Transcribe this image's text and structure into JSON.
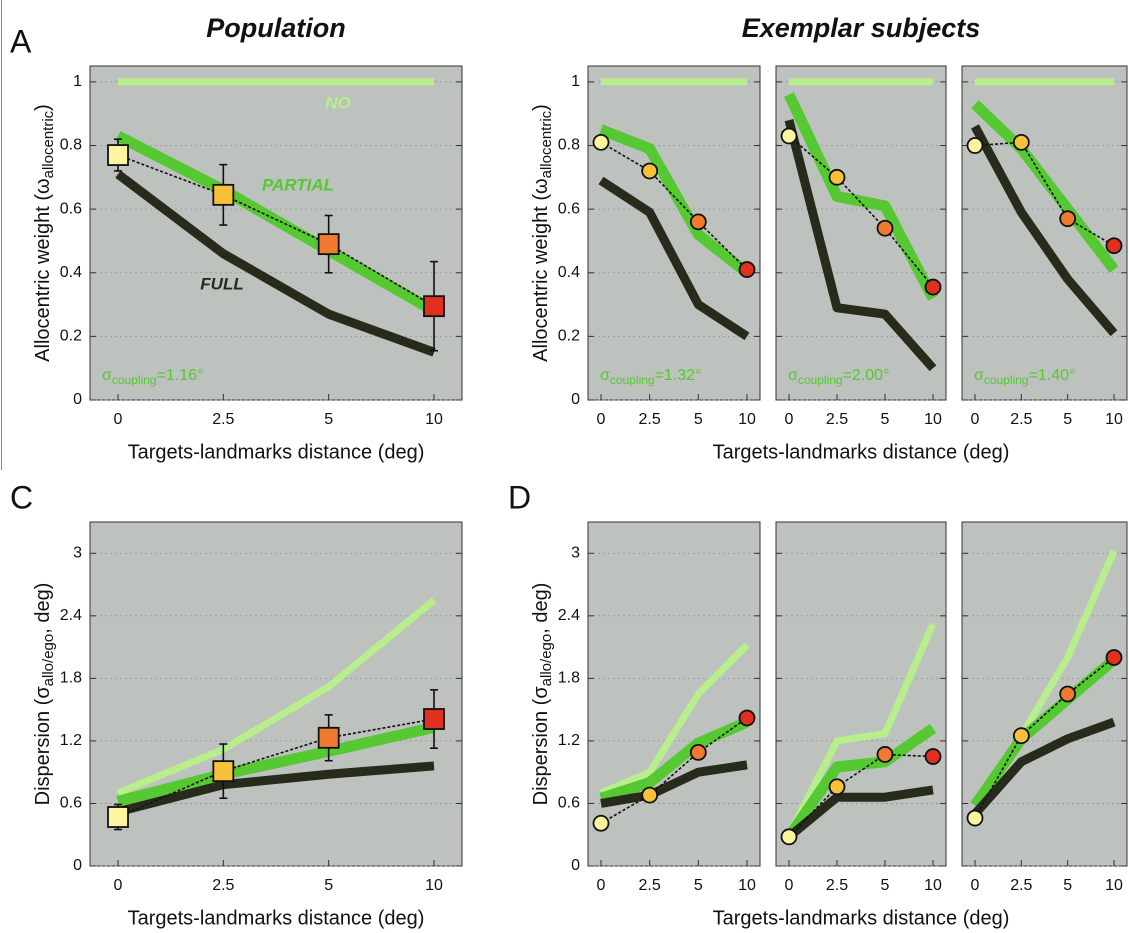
{
  "chart_data": [
    {
      "type": "line",
      "panel_label": "A",
      "heading": "Population",
      "ylabel": [
        "Allocentric weight (ω",
        "allocentric",
        ")"
      ],
      "xlabel": "Targets-landmarks distance (deg)",
      "categories": [
        "0",
        "2.5",
        "5",
        "10"
      ],
      "ylim": [
        0,
        1.05
      ],
      "yticks": [
        0,
        0.2,
        0.4,
        0.6,
        0.8,
        1
      ],
      "ytick_labels": true,
      "grid": true,
      "background": "#bdc2bf",
      "series": [
        {
          "color": "#b8ef8c",
          "values": [
            1,
            1,
            1,
            1
          ]
        },
        {
          "color": "#55c832",
          "values": [
            0.83,
            0.66,
            0.47,
            0.28
          ]
        },
        {
          "color": "#272b1c",
          "values": [
            0.71,
            0.46,
            0.27,
            0.15
          ]
        },
        {
          "color": "#111111",
          "marker": "square",
          "values": [
            0.77,
            0.645,
            0.49,
            0.295
          ],
          "errors": [
            0.05,
            0.095,
            0.09,
            0.14
          ],
          "point_colors": [
            "#fdf4a0",
            "#f9c03a",
            "#f07a30",
            "#e0301e"
          ]
        }
      ],
      "annotations": [
        {
          "text": "NO",
          "color": "#b8ef8c"
        },
        {
          "text": "PARTIAL",
          "color": "#55c832"
        },
        {
          "text": "FULL",
          "color": "#272b1c"
        }
      ],
      "coupling_label": [
        "σ",
        "coupling",
        "=1.16°"
      ]
    },
    {
      "type": "line",
      "ylabel": [
        "Allocentric weight (ω",
        "allocentric",
        ")"
      ],
      "categories": [
        "0",
        "2.5",
        "5",
        "10"
      ],
      "ylim": [
        0,
        1.05
      ],
      "yticks": [
        0,
        0.2,
        0.4,
        0.6,
        0.8,
        1
      ],
      "ytick_labels": true,
      "grid": true,
      "background": "#bdc2bf",
      "series": [
        {
          "color": "#b8ef8c",
          "values": [
            1,
            1,
            1,
            1
          ]
        },
        {
          "color": "#55c832",
          "values": [
            0.85,
            0.79,
            0.52,
            0.4
          ]
        },
        {
          "color": "#272b1c",
          "values": [
            0.69,
            0.59,
            0.3,
            0.2
          ]
        },
        {
          "color": "#111111",
          "marker": "circle",
          "values": [
            0.81,
            0.72,
            0.56,
            0.41
          ],
          "point_colors": [
            "#fdf4a0",
            "#f9c03a",
            "#f07a30",
            "#e0301e"
          ]
        }
      ],
      "coupling_label": [
        "σ",
        "coupling",
        "=1.32°"
      ]
    },
    {
      "type": "line",
      "heading": "Exemplar subjects",
      "xlabel": "Targets-landmarks distance (deg)",
      "categories": [
        "0",
        "2.5",
        "5",
        "10"
      ],
      "ylim": [
        0,
        1.05
      ],
      "yticks": [
        0,
        0.2,
        0.4,
        0.6,
        0.8,
        1
      ],
      "ytick_labels": false,
      "grid": true,
      "background": "#bdc2bf",
      "series": [
        {
          "color": "#b8ef8c",
          "values": [
            1,
            1,
            1,
            1
          ]
        },
        {
          "color": "#55c832",
          "values": [
            0.96,
            0.64,
            0.61,
            0.32
          ]
        },
        {
          "color": "#272b1c",
          "values": [
            0.88,
            0.29,
            0.27,
            0.1
          ]
        },
        {
          "color": "#111111",
          "marker": "circle",
          "values": [
            0.83,
            0.7,
            0.54,
            0.355
          ],
          "point_colors": [
            "#fdf4a0",
            "#f9c03a",
            "#f07a30",
            "#e0301e"
          ]
        }
      ],
      "coupling_label": [
        "σ",
        "coupling",
        "=2.00°"
      ]
    },
    {
      "type": "line",
      "categories": [
        "0",
        "2.5",
        "5",
        "10"
      ],
      "ylim": [
        0,
        1.05
      ],
      "yticks": [
        0,
        0.2,
        0.4,
        0.6,
        0.8,
        1
      ],
      "ytick_labels": false,
      "grid": true,
      "background": "#bdc2bf",
      "series": [
        {
          "color": "#b8ef8c",
          "values": [
            1,
            1,
            1,
            1
          ]
        },
        {
          "color": "#55c832",
          "values": [
            0.93,
            0.79,
            0.6,
            0.41
          ]
        },
        {
          "color": "#272b1c",
          "values": [
            0.86,
            0.59,
            0.38,
            0.21
          ]
        },
        {
          "color": "#111111",
          "marker": "circle",
          "values": [
            0.8,
            0.81,
            0.57,
            0.485
          ],
          "point_colors": [
            "#fdf4a0",
            "#f9c03a",
            "#f07a30",
            "#e0301e"
          ]
        }
      ],
      "coupling_label": [
        "σ",
        "coupling",
        "=1.40°"
      ]
    },
    {
      "type": "line",
      "panel_label": "C",
      "ylabel": [
        "Dispersion (σ",
        "allo/ego",
        ", deg)"
      ],
      "xlabel": "Targets-landmarks distance (deg)",
      "categories": [
        "0",
        "2.5",
        "5",
        "10"
      ],
      "ylim": [
        0,
        3.3
      ],
      "yticks": [
        0,
        0.6,
        1.2,
        1.8,
        2.4,
        3
      ],
      "ytick_labels": true,
      "grid": true,
      "background": "#bdc2bf",
      "series": [
        {
          "color": "#b8ef8c",
          "values": [
            0.7,
            1.12,
            1.72,
            2.55
          ]
        },
        {
          "color": "#55c832",
          "values": [
            0.62,
            0.88,
            1.1,
            1.33
          ]
        },
        {
          "color": "#272b1c",
          "values": [
            0.52,
            0.78,
            0.88,
            0.96
          ]
        },
        {
          "color": "#111111",
          "marker": "square",
          "values": [
            0.47,
            0.91,
            1.23,
            1.41
          ],
          "errors": [
            0.12,
            0.26,
            0.22,
            0.28
          ],
          "point_colors": [
            "#fdf4a0",
            "#f9c03a",
            "#f07a30",
            "#e0301e"
          ]
        }
      ]
    },
    {
      "type": "line",
      "panel_label": "D",
      "ylabel": [
        "Dispersion (σ",
        "allo/ego",
        ", deg)"
      ],
      "categories": [
        "0",
        "2.5",
        "5",
        "10"
      ],
      "ylim": [
        0,
        3.3
      ],
      "yticks": [
        0,
        0.6,
        1.2,
        1.8,
        2.4,
        3
      ],
      "ytick_labels": true,
      "grid": true,
      "background": "#bdc2bf",
      "series": [
        {
          "color": "#b8ef8c",
          "values": [
            0.7,
            0.9,
            1.65,
            2.12
          ]
        },
        {
          "color": "#55c832",
          "values": [
            0.65,
            0.8,
            1.18,
            1.38
          ]
        },
        {
          "color": "#272b1c",
          "values": [
            0.6,
            0.68,
            0.9,
            0.97
          ]
        },
        {
          "color": "#111111",
          "marker": "circle",
          "values": [
            0.41,
            0.68,
            1.09,
            1.42
          ],
          "point_colors": [
            "#fdf4a0",
            "#f9c03a",
            "#f07a30",
            "#e0301e"
          ]
        }
      ]
    },
    {
      "type": "line",
      "xlabel": "Targets-landmarks distance (deg)",
      "categories": [
        "0",
        "2.5",
        "5",
        "10"
      ],
      "ylim": [
        0,
        3.3
      ],
      "yticks": [
        0,
        0.6,
        1.2,
        1.8,
        2.4,
        3
      ],
      "ytick_labels": false,
      "grid": true,
      "background": "#bdc2bf",
      "series": [
        {
          "color": "#b8ef8c",
          "values": [
            0.3,
            1.2,
            1.27,
            2.32
          ]
        },
        {
          "color": "#55c832",
          "values": [
            0.28,
            0.95,
            1.0,
            1.32
          ]
        },
        {
          "color": "#272b1c",
          "values": [
            0.28,
            0.66,
            0.66,
            0.73
          ]
        },
        {
          "color": "#111111",
          "marker": "circle",
          "values": [
            0.28,
            0.76,
            1.07,
            1.05
          ],
          "point_colors": [
            "#fdf4a0",
            "#f9c03a",
            "#f07a30",
            "#e0301e"
          ]
        }
      ]
    },
    {
      "type": "line",
      "categories": [
        "0",
        "2.5",
        "5",
        "10"
      ],
      "ylim": [
        0,
        3.3
      ],
      "yticks": [
        0,
        0.6,
        1.2,
        1.8,
        2.4,
        3
      ],
      "ytick_labels": false,
      "grid": true,
      "background": "#bdc2bf",
      "series": [
        {
          "color": "#b8ef8c",
          "values": [
            0.6,
            1.25,
            2.0,
            3.02
          ]
        },
        {
          "color": "#55c832",
          "values": [
            0.58,
            1.22,
            1.6,
            1.98
          ]
        },
        {
          "color": "#272b1c",
          "values": [
            0.5,
            1.0,
            1.22,
            1.38
          ]
        },
        {
          "color": "#111111",
          "marker": "circle",
          "values": [
            0.46,
            1.25,
            1.65,
            2.0
          ],
          "point_colors": [
            "#fdf4a0",
            "#f9c03a",
            "#f07a30",
            "#e0301e"
          ]
        }
      ]
    }
  ]
}
